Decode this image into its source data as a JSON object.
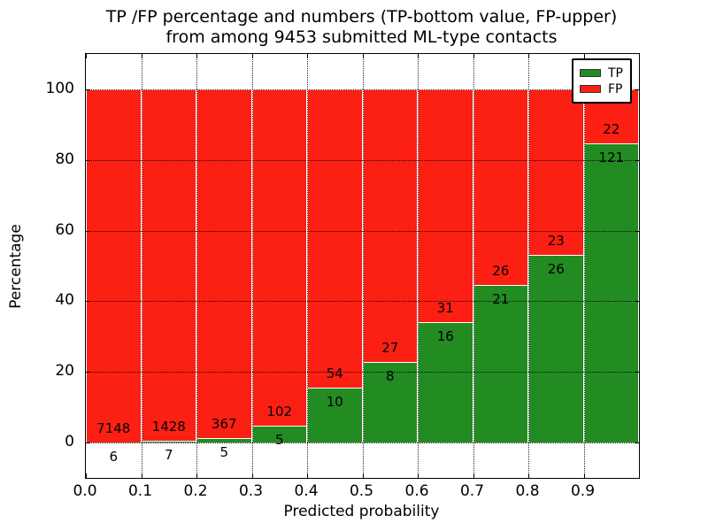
{
  "title": {
    "line1": "TP /FP percentage and numbers (TP-bottom value, FP-upper)",
    "line2": "from among 9453 submitted ML-type contacts"
  },
  "chart_data": {
    "type": "bar",
    "stacked": true,
    "title": "TP /FP percentage and numbers (TP-bottom value, FP-upper) from among 9453 submitted ML-type contacts",
    "xlabel": "Predicted probability",
    "ylabel": "Percentage",
    "xlim": [
      0.0,
      1.0
    ],
    "ylim": [
      -10,
      110
    ],
    "x_ticks": [
      "0.0",
      "0.1",
      "0.2",
      "0.3",
      "0.4",
      "0.5",
      "0.6",
      "0.7",
      "0.8",
      "0.9"
    ],
    "x_tick_values": [
      0.0,
      0.1,
      0.2,
      0.3,
      0.4,
      0.5,
      0.6,
      0.7,
      0.8,
      0.9
    ],
    "y_ticks": [
      0,
      20,
      40,
      60,
      80,
      100
    ],
    "grid": true,
    "legend_position": "upper right",
    "series": [
      {
        "name": "TP",
        "color": "#228b22"
      },
      {
        "name": "FP",
        "color": "#fc1f14"
      }
    ],
    "bins": [
      {
        "x0": 0.0,
        "x1": 0.1,
        "tp_count": 6,
        "fp_count": 7148,
        "tp_pct": 0.08,
        "fp_pct": 99.92
      },
      {
        "x0": 0.1,
        "x1": 0.2,
        "tp_count": 7,
        "fp_count": 1428,
        "tp_pct": 0.49,
        "fp_pct": 99.51
      },
      {
        "x0": 0.2,
        "x1": 0.3,
        "tp_count": 5,
        "fp_count": 367,
        "tp_pct": 1.34,
        "fp_pct": 98.66
      },
      {
        "x0": 0.3,
        "x1": 0.4,
        "tp_count": 5,
        "fp_count": 102,
        "tp_pct": 4.67,
        "fp_pct": 95.33
      },
      {
        "x0": 0.4,
        "x1": 0.5,
        "tp_count": 10,
        "fp_count": 54,
        "tp_pct": 15.63,
        "fp_pct": 84.37
      },
      {
        "x0": 0.5,
        "x1": 0.6,
        "tp_count": 8,
        "fp_count": 27,
        "tp_pct": 22.86,
        "fp_pct": 77.14
      },
      {
        "x0": 0.6,
        "x1": 0.7,
        "tp_count": 16,
        "fp_count": 31,
        "tp_pct": 34.04,
        "fp_pct": 65.96
      },
      {
        "x0": 0.7,
        "x1": 0.8,
        "tp_count": 21,
        "fp_count": 26,
        "tp_pct": 44.68,
        "fp_pct": 55.32
      },
      {
        "x0": 0.8,
        "x1": 0.9,
        "tp_count": 26,
        "fp_count": 23,
        "tp_pct": 53.06,
        "fp_pct": 46.94
      },
      {
        "x0": 0.9,
        "x1": 1.0,
        "tp_count": 121,
        "fp_count": 22,
        "tp_pct": 84.62,
        "fp_pct": 15.38
      }
    ],
    "total_contacts": 9453
  }
}
